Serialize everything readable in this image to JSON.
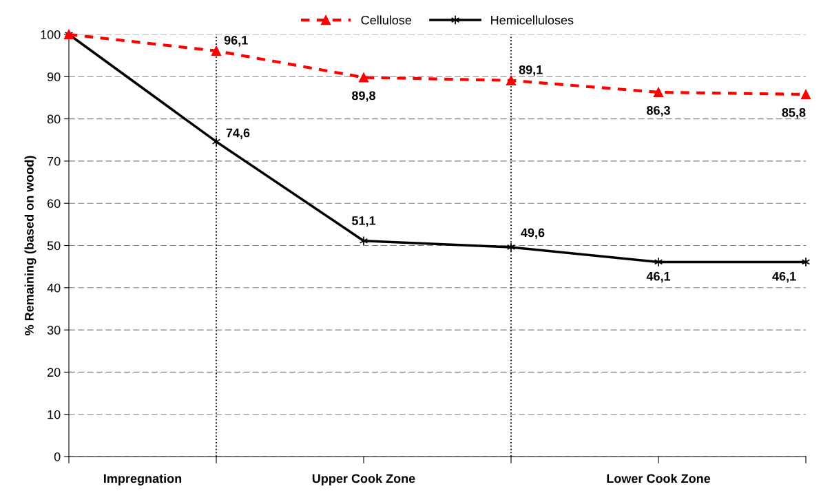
{
  "chart_data": {
    "type": "line",
    "categories": [
      null,
      null,
      null,
      null,
      null,
      null
    ],
    "ylabel": "% Remaining (based on wood)",
    "ylim": [
      0,
      100
    ],
    "yticks": [
      0,
      10,
      20,
      30,
      40,
      50,
      60,
      70,
      80,
      90,
      100
    ],
    "grid": "y",
    "legend": "top",
    "series": [
      {
        "name": "Cellulose",
        "color": "#ff0000",
        "marker": "triangle",
        "line_style": "dashed",
        "values": [
          100,
          96.1,
          89.8,
          89.1,
          86.3,
          85.8
        ],
        "value_labels": [
          null,
          "96,1",
          "89,8",
          "89,1",
          "86,3",
          "85,8"
        ]
      },
      {
        "name": "Hemicelluloses",
        "color": "#000000",
        "marker": "cross",
        "line_style": "solid",
        "values": [
          100,
          74.6,
          51.1,
          49.6,
          46.1,
          46.1
        ],
        "value_labels": [
          null,
          "74,6",
          "51,1",
          "49,6",
          "46,1",
          "46,1"
        ]
      }
    ],
    "annotations": [
      "Impregnation",
      "Upper Cook Zone",
      "Lower Cook Zone"
    ]
  }
}
